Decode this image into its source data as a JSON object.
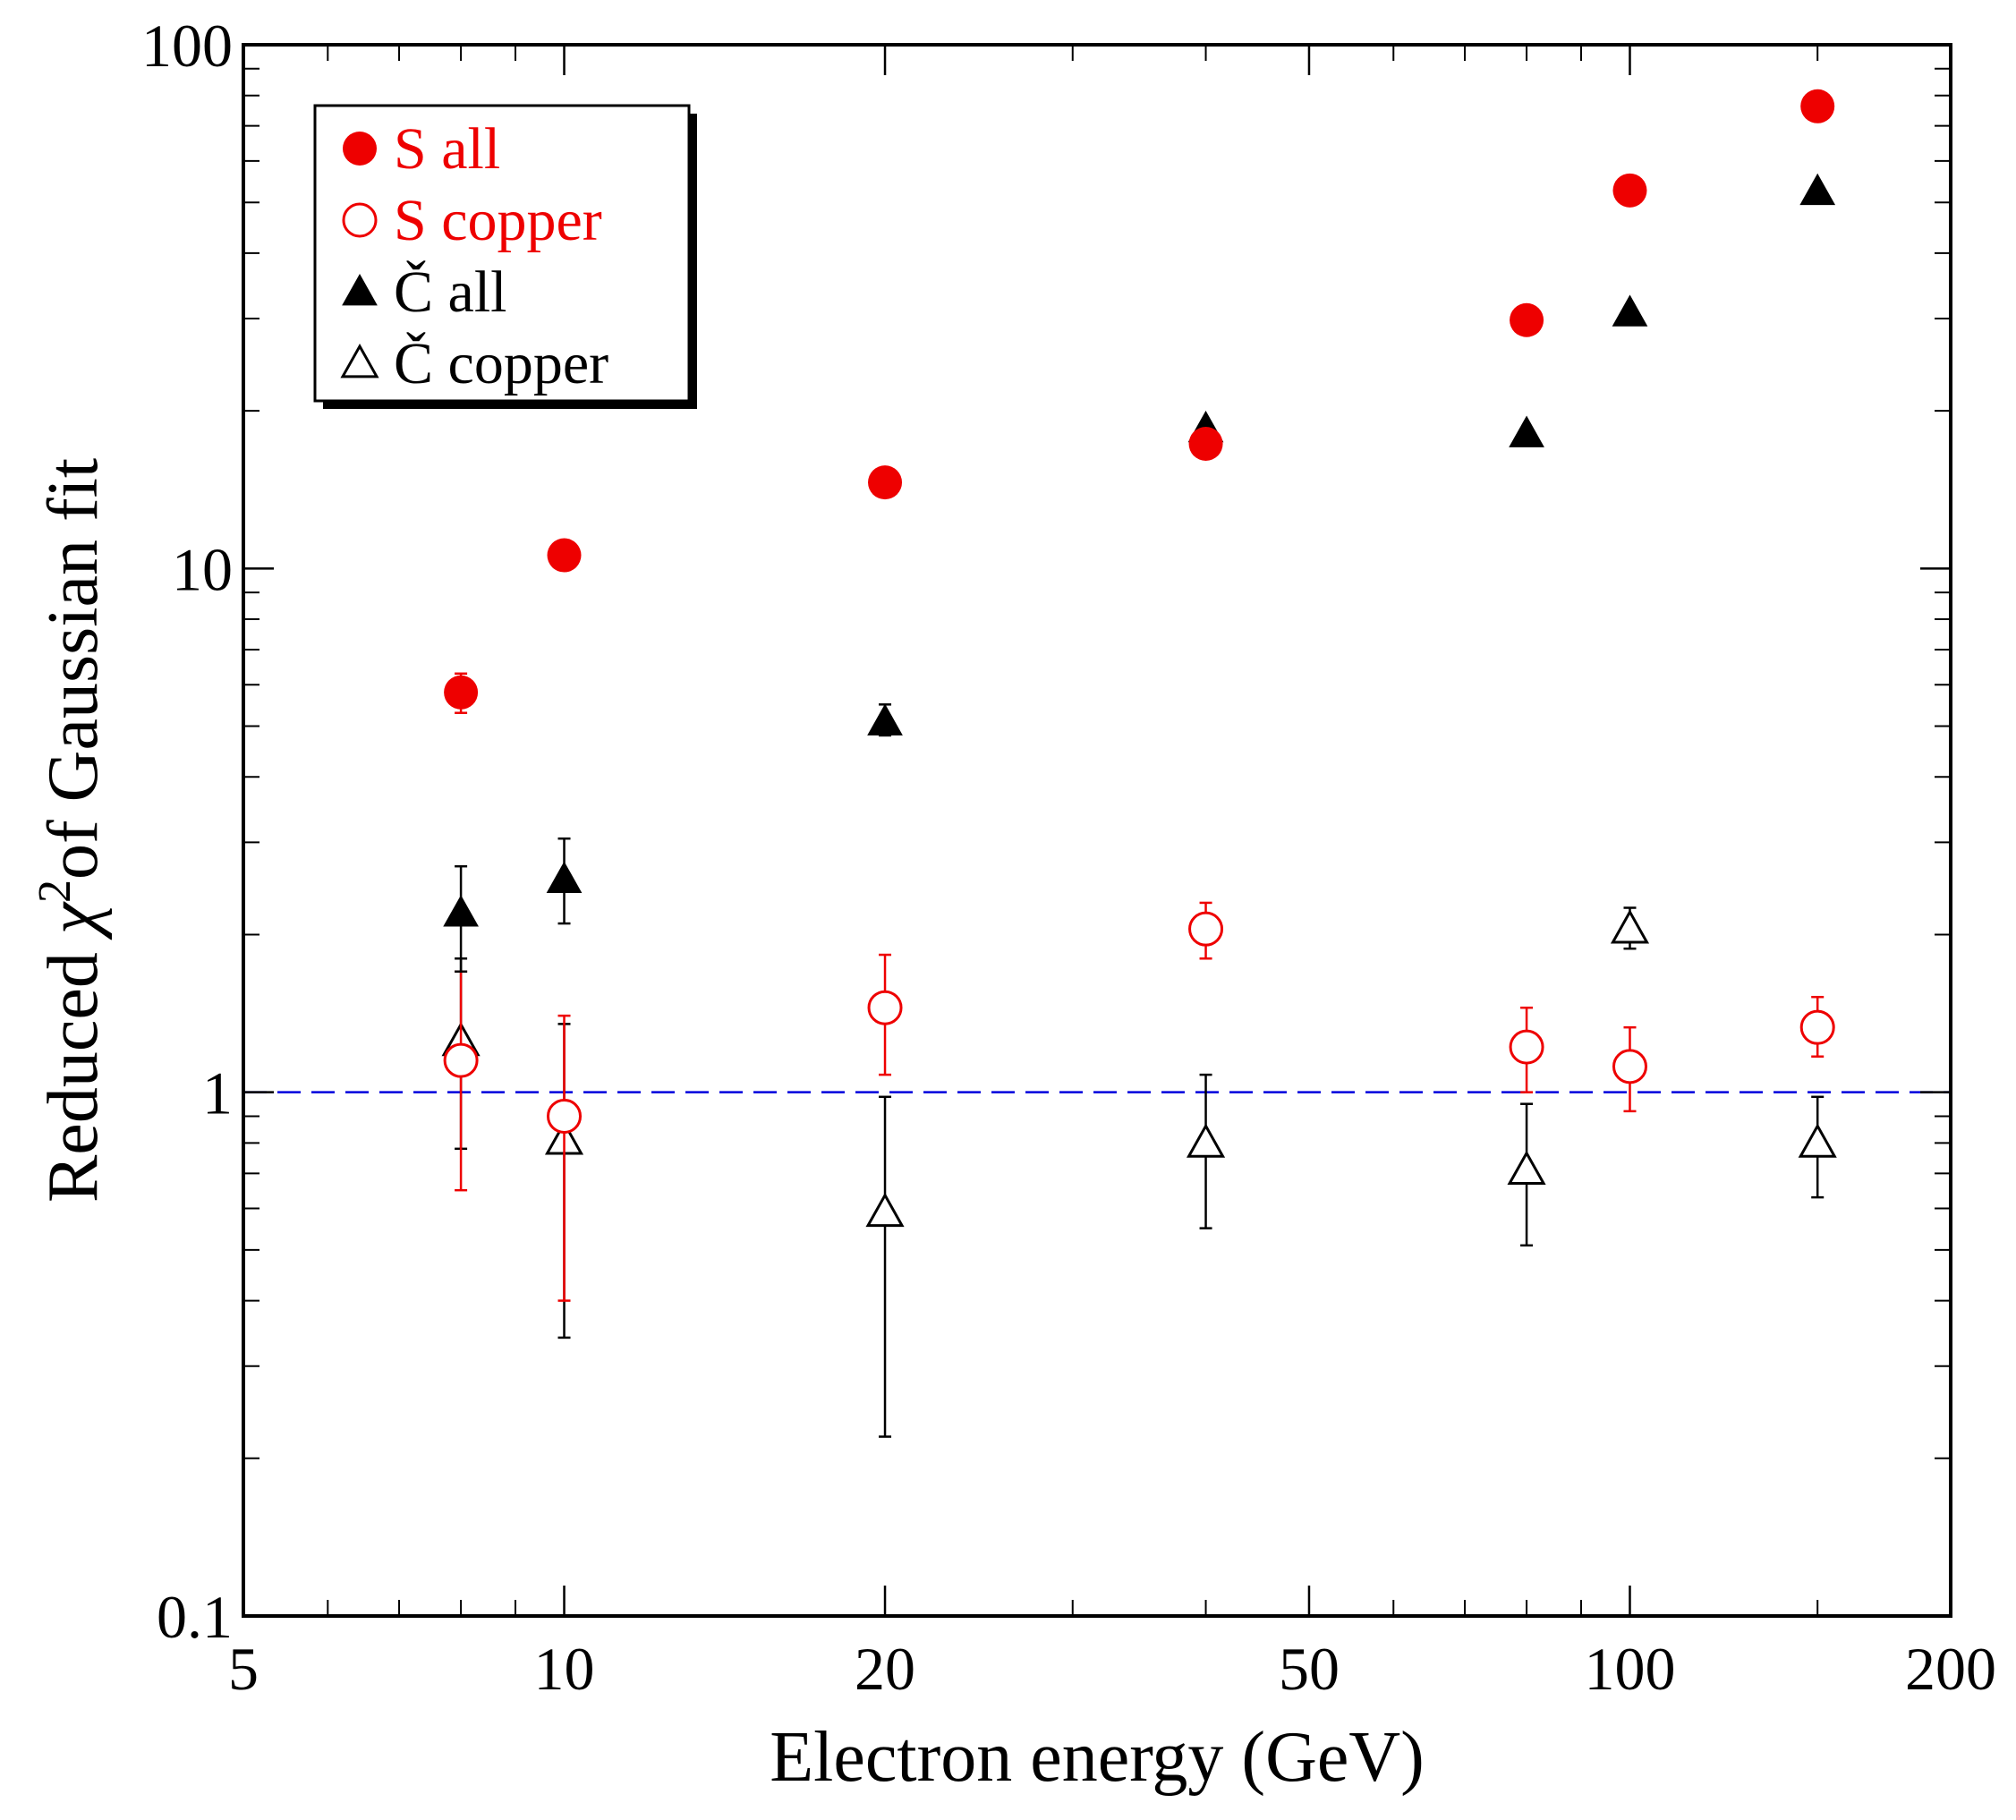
{
  "chart_data": {
    "type": "scatter",
    "title": "",
    "xlabel": "Electron energy (GeV)",
    "ylabel_prefix": "Reduced ",
    "ylabel_symbol": "χ",
    "ylabel_superscript": "2",
    "ylabel_suffix": "of Gaussian fit",
    "x_scale": "log",
    "y_scale": "log",
    "xlim": [
      5,
      200
    ],
    "ylim": [
      0.1,
      100
    ],
    "x_tick_labels": [
      {
        "value": 5,
        "label": "5"
      },
      {
        "value": 10,
        "label": "10"
      },
      {
        "value": 20,
        "label": "20"
      },
      {
        "value": 50,
        "label": "50"
      },
      {
        "value": 100,
        "label": "100"
      },
      {
        "value": 200,
        "label": "200"
      }
    ],
    "y_tick_labels": [
      {
        "value": 0.1,
        "label": "0.1"
      },
      {
        "value": 1,
        "label": "1"
      },
      {
        "value": 10,
        "label": "10"
      },
      {
        "value": 100,
        "label": "100"
      }
    ],
    "grid": false,
    "legend_position": "top-left",
    "reference_line": {
      "y": 1,
      "color": "#0000dd",
      "style": "dashed"
    },
    "series": [
      {
        "name": "S all",
        "marker": "circle-filled",
        "color": "#ee0000",
        "points": [
          {
            "x": 8,
            "y": 5.8,
            "lo": 5.3,
            "hi": 6.3
          },
          {
            "x": 10,
            "y": 10.6,
            "lo": 10.6,
            "hi": 10.6
          },
          {
            "x": 20,
            "y": 14.6,
            "lo": 14.6,
            "hi": 14.6
          },
          {
            "x": 40,
            "y": 17.3,
            "lo": 17.3,
            "hi": 17.3
          },
          {
            "x": 80,
            "y": 29.8,
            "lo": 29.8,
            "hi": 29.8
          },
          {
            "x": 100,
            "y": 52.7,
            "lo": 52.7,
            "hi": 52.7
          },
          {
            "x": 150,
            "y": 76.3,
            "lo": 76.3,
            "hi": 76.3
          }
        ]
      },
      {
        "name": "S copper",
        "marker": "circle-open",
        "color": "#ee0000",
        "points": [
          {
            "x": 8,
            "y": 1.15,
            "lo": 0.65,
            "hi": 1.7
          },
          {
            "x": 10,
            "y": 0.9,
            "lo": 0.4,
            "hi": 1.4
          },
          {
            "x": 20,
            "y": 1.45,
            "lo": 1.08,
            "hi": 1.83
          },
          {
            "x": 40,
            "y": 2.05,
            "lo": 1.8,
            "hi": 2.3
          },
          {
            "x": 80,
            "y": 1.22,
            "lo": 1.0,
            "hi": 1.45
          },
          {
            "x": 100,
            "y": 1.12,
            "lo": 0.92,
            "hi": 1.33
          },
          {
            "x": 150,
            "y": 1.33,
            "lo": 1.17,
            "hi": 1.52
          }
        ]
      },
      {
        "name": "Č all",
        "marker": "triangle-filled",
        "color": "#000000",
        "points": [
          {
            "x": 8,
            "y": 2.2,
            "lo": 1.7,
            "hi": 2.7
          },
          {
            "x": 10,
            "y": 2.55,
            "lo": 2.1,
            "hi": 3.05
          },
          {
            "x": 20,
            "y": 5.1,
            "lo": 4.8,
            "hi": 5.5
          },
          {
            "x": 40,
            "y": 18.5,
            "lo": 18.5,
            "hi": 18.5
          },
          {
            "x": 80,
            "y": 18.1,
            "lo": 18.1,
            "hi": 18.1
          },
          {
            "x": 100,
            "y": 30.8,
            "lo": 30.8,
            "hi": 30.8
          },
          {
            "x": 150,
            "y": 52.5,
            "lo": 52.5,
            "hi": 52.5
          }
        ]
      },
      {
        "name": "Č copper",
        "marker": "triangle-open",
        "color": "#000000",
        "points": [
          {
            "x": 8,
            "y": 1.25,
            "lo": 0.78,
            "hi": 1.8
          },
          {
            "x": 10,
            "y": 0.81,
            "lo": 0.34,
            "hi": 1.35
          },
          {
            "x": 20,
            "y": 0.59,
            "lo": 0.22,
            "hi": 0.98
          },
          {
            "x": 40,
            "y": 0.8,
            "lo": 0.55,
            "hi": 1.08
          },
          {
            "x": 80,
            "y": 0.71,
            "lo": 0.51,
            "hi": 0.95
          },
          {
            "x": 100,
            "y": 2.05,
            "lo": 1.88,
            "hi": 2.25
          },
          {
            "x": 150,
            "y": 0.8,
            "lo": 0.63,
            "hi": 0.98
          }
        ]
      }
    ]
  }
}
